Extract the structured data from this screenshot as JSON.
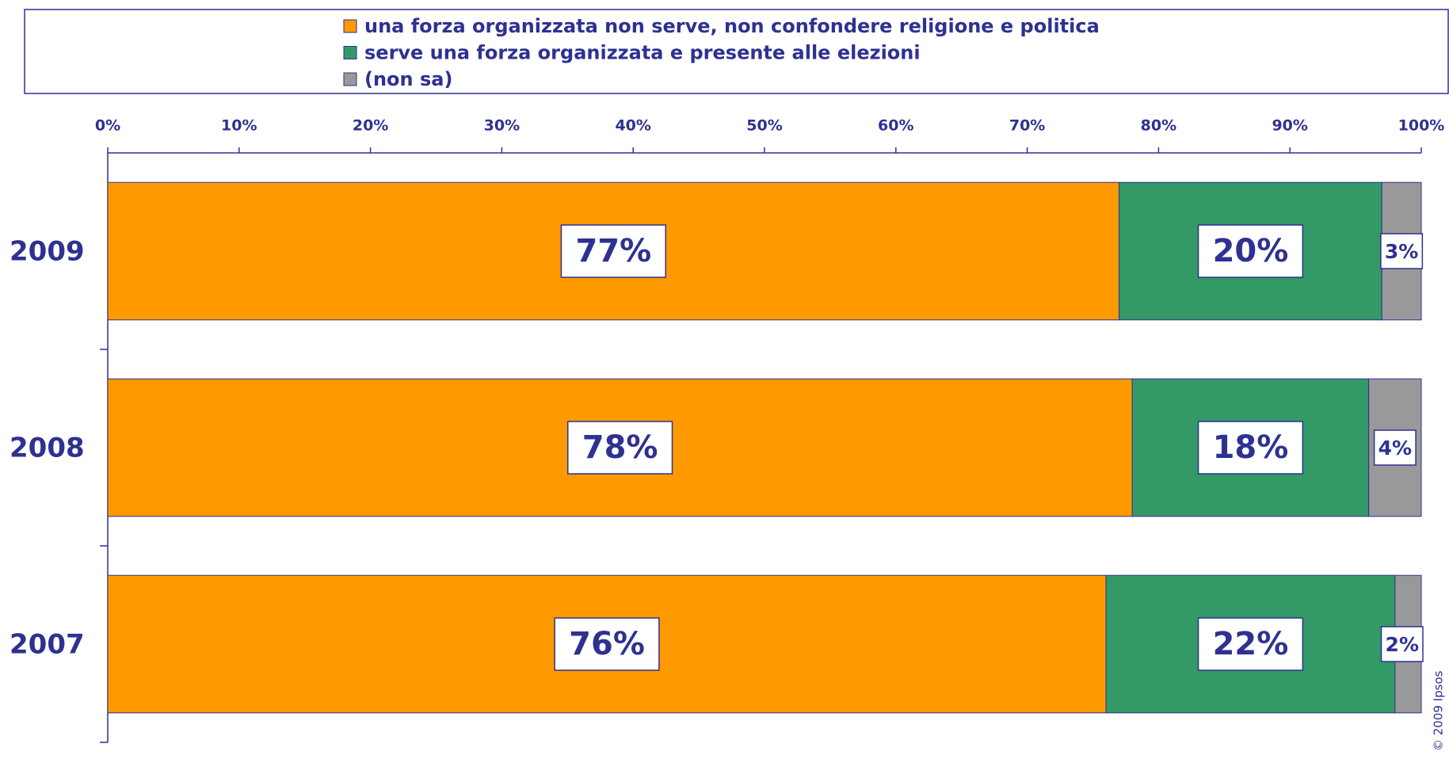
{
  "chart_data": {
    "type": "stacked_barh",
    "categories": [
      "2009",
      "2008",
      "2007"
    ],
    "series": [
      {
        "name": "una forza organizzata non serve, non confondere religione e politica",
        "color": "#ff9900",
        "values": [
          77,
          78,
          76
        ],
        "value_labels": [
          "77%",
          "78%",
          "76%"
        ]
      },
      {
        "name": "serve una forza  organizzata e presente alle elezioni",
        "color": "#339966",
        "values": [
          20,
          18,
          22
        ],
        "value_labels": [
          "20%",
          "18%",
          "22%"
        ]
      },
      {
        "name": "(non sa)",
        "color": "#999999",
        "values": [
          3,
          4,
          2
        ],
        "value_labels": [
          "3%",
          "4%",
          "2%"
        ]
      }
    ],
    "xlim": [
      0,
      100
    ],
    "xticks": [
      {
        "value": 0,
        "label": "0%"
      },
      {
        "value": 10,
        "label": "10%"
      },
      {
        "value": 20,
        "label": "20%"
      },
      {
        "value": 30,
        "label": "30%"
      },
      {
        "value": 40,
        "label": "40%"
      },
      {
        "value": 50,
        "label": "50%"
      },
      {
        "value": 60,
        "label": "60%"
      },
      {
        "value": 70,
        "label": "70%"
      },
      {
        "value": 80,
        "label": "80%"
      },
      {
        "value": 90,
        "label": "90%"
      },
      {
        "value": 100,
        "label": "100%"
      }
    ],
    "legend": "top",
    "copyright": "© 2009 Ipsos"
  }
}
